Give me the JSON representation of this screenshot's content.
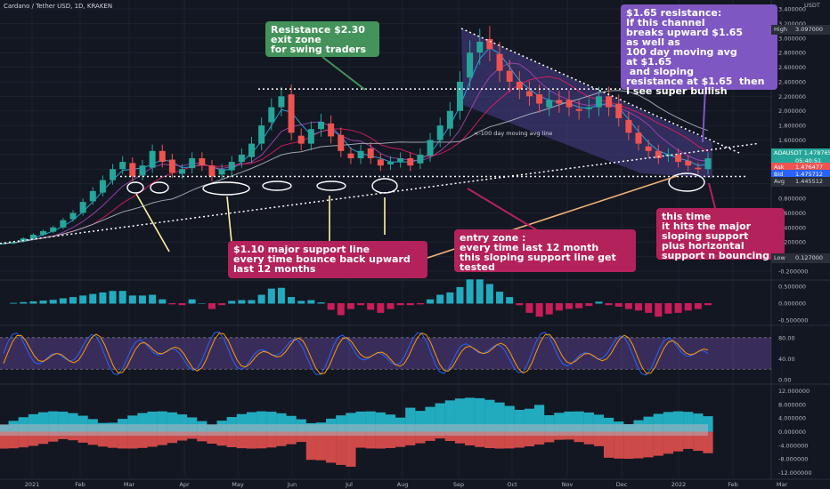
{
  "header": {
    "title": "Cardano / Tether USD, 1D, KRAKEN"
  },
  "chart_data": {
    "type": "candlestick",
    "symbol": "ADAUSDT",
    "currency": "USDT",
    "x_tick_labels": [
      "2021",
      "Feb",
      "Mar",
      "Apr",
      "May",
      "Jun",
      "Jul",
      "Aug",
      "Sep",
      "Oct",
      "Nov",
      "Dec",
      "2022",
      "Feb",
      "Mar"
    ],
    "y_tick_labels": [
      "3.400000",
      "3.200000",
      "3.000000",
      "2.800000",
      "2.600000",
      "2.400000",
      "2.200000",
      "2.000000",
      "1.800000",
      "1.600000",
      "1.400000",
      "1.200000",
      "1.000000",
      "0.800000",
      "0.600000",
      "0.400000",
      "0.200000",
      "0.000000",
      "-0.200000"
    ],
    "ylim": [
      -0.2,
      3.4
    ],
    "price_labels": {
      "high": {
        "label": "High",
        "value": "3.097000"
      },
      "last": {
        "label": "ADAUSDT",
        "value": "1.478765",
        "countdown": "05:40:51"
      },
      "ask": {
        "label": "Ask",
        "value": "1.476477"
      },
      "bid": {
        "label": "Bid",
        "value": "1.475712"
      },
      "avg": {
        "label": "Avg",
        "value": "1.445512"
      },
      "low": {
        "label": "Low",
        "value": "0.127000"
      }
    },
    "close_approx": [
      0.18,
      0.2,
      0.25,
      0.3,
      0.35,
      0.4,
      0.5,
      0.6,
      0.75,
      0.9,
      1.05,
      1.2,
      1.3,
      1.1,
      1.25,
      1.45,
      1.3,
      1.15,
      1.2,
      1.35,
      1.25,
      1.1,
      1.2,
      1.3,
      1.4,
      1.55,
      1.8,
      2.05,
      2.2,
      1.7,
      1.55,
      1.75,
      1.85,
      1.65,
      1.45,
      1.35,
      1.45,
      1.35,
      1.25,
      1.3,
      1.35,
      1.25,
      1.4,
      1.6,
      1.8,
      2.0,
      2.4,
      2.8,
      2.95,
      2.85,
      2.55,
      2.4,
      2.3,
      2.2,
      2.1,
      2.15,
      2.1,
      2.05,
      2.0,
      2.05,
      2.2,
      2.05,
      1.9,
      1.7,
      1.55,
      1.45,
      1.35,
      1.4,
      1.3,
      1.25,
      1.2,
      1.35
    ],
    "indicators": [
      {
        "name": "macd_histogram",
        "y_tick_labels": [
          "0.500000",
          "0.000000",
          "-0.500000"
        ]
      },
      {
        "name": "stochastic_rsi",
        "y_tick_labels": [
          "80.00",
          "40.00",
          "0.00"
        ]
      },
      {
        "name": "oscillator",
        "y_tick_labels": [
          "12.000000",
          "8.000000",
          "4.000000",
          "0.000000",
          "-4.000000",
          "-8.000000",
          "-12.000000"
        ]
      }
    ]
  },
  "annotations": {
    "resistance": "Resistance $2.30\nexit zone\nfor swing traders",
    "channel": "$1.65 resistance:\nIf this channel\nbreaks upward $1.65\nas well as\n100 day moving avg\nat $1.65\n and sloping\nresistance at $1.65  then\nI see super bullish",
    "ma_label": "<-100 day moving avg line",
    "support": "$1.10 major support line\nevery time bounce back upward\nlast 12 months",
    "entry": "entry zone :\nevery time last 12 month\nthis sloping support line get\ntested",
    "sloping": "this time\nit hits the major\nsloping support\nplus horizontal\nsupport n bouncing"
  },
  "colors": {
    "background": "#131722",
    "up": "#26a69a",
    "down": "#ef5350",
    "note_green": "#43935a",
    "note_purple": "#7e57c2",
    "note_pink": "#b4225b",
    "channel_fill": "#4a3f8c"
  }
}
